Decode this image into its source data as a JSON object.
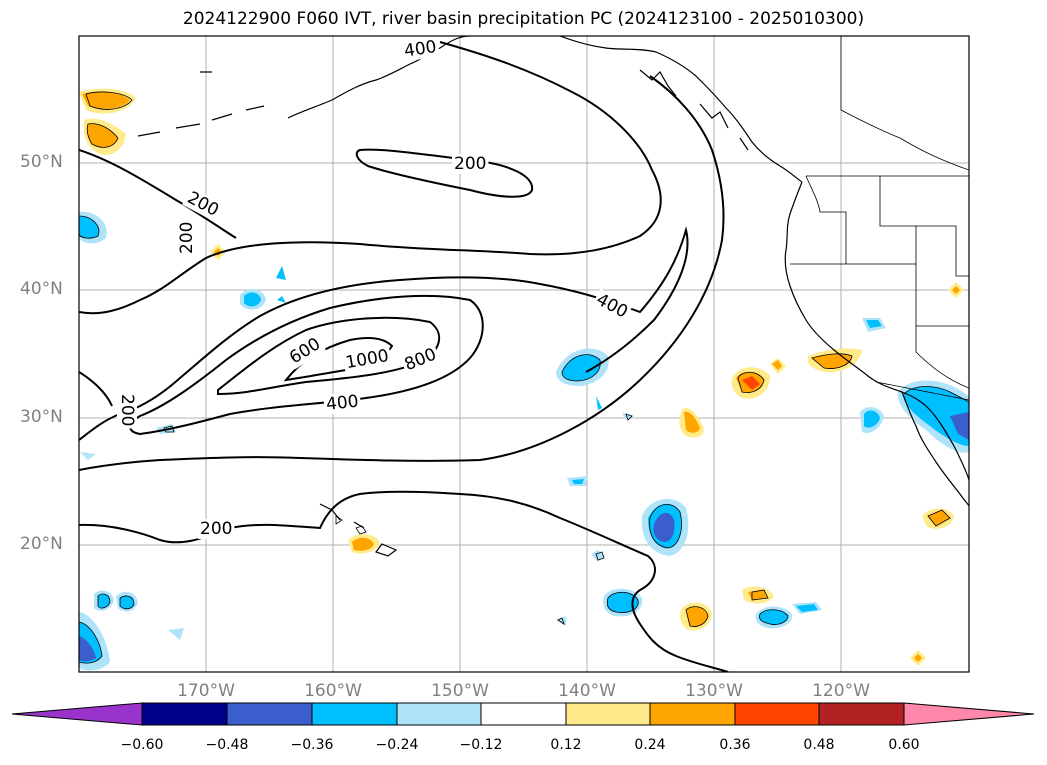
{
  "title": "2024122900 F060 IVT, river basin precipitation PC (2024123100 - 2025010300)",
  "lat_labels": [
    "50°N",
    "40°N",
    "30°N",
    "20°N"
  ],
  "lon_labels": [
    "170°W",
    "160°W",
    "150°W",
    "140°W",
    "130°W",
    "120°W"
  ],
  "contour_labels": [
    "400",
    "200",
    "200",
    "200",
    "200",
    "400",
    "600",
    "1000",
    "800",
    "400",
    "200"
  ],
  "colorbar": {
    "ticks": [
      "−0.60",
      "−0.48",
      "−0.36",
      "−0.24",
      "−0.12",
      "0.12",
      "0.24",
      "0.36",
      "0.48",
      "0.60"
    ],
    "colors": [
      "#9933cc",
      "#00008b",
      "#3a5fcd",
      "#00bfff",
      "#afe3fa",
      "#ffffff",
      "#ffeb8a",
      "#ffa500",
      "#ff4500",
      "#b22222",
      "#ff88aa"
    ]
  },
  "map": {
    "lat_range": [
      10,
      60
    ],
    "lon_range": [
      -180,
      -110
    ],
    "contour_levels": [
      200,
      400,
      600,
      800,
      1000
    ]
  }
}
